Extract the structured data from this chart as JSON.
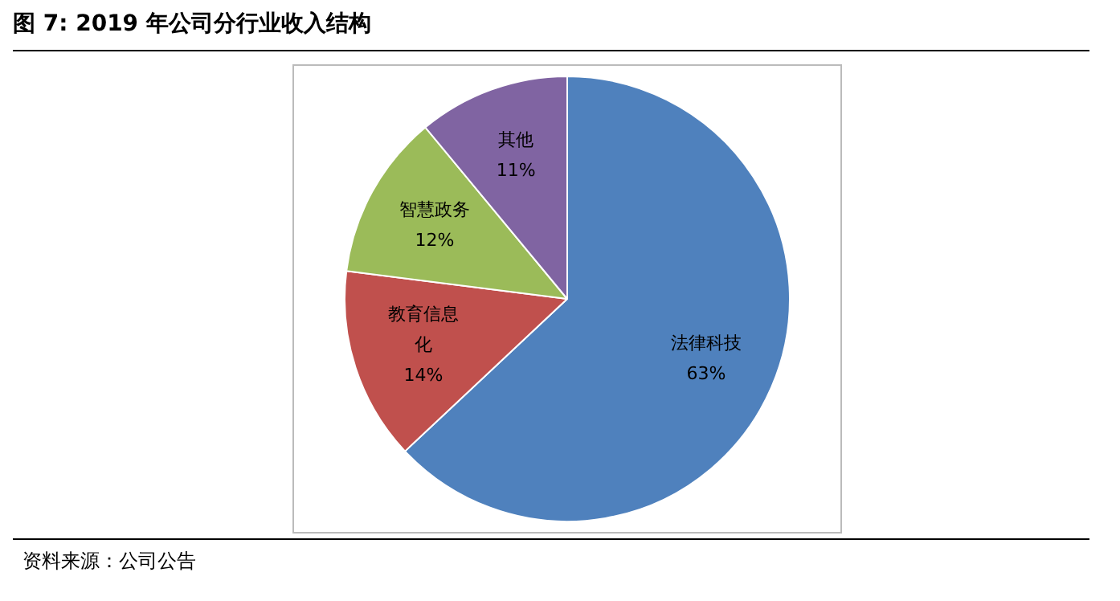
{
  "chart_data": {
    "type": "pie",
    "title": "图 7:  2019 年公司分行业收入结构",
    "categories": [
      "法律科技",
      "教育信息化",
      "智慧政务",
      "其他"
    ],
    "values": [
      63,
      14,
      12,
      11
    ],
    "value_labels": [
      "63%",
      "14%",
      "12%",
      "11%"
    ],
    "colors": [
      "#4f81bd",
      "#c0504d",
      "#9bbb59",
      "#8064a2"
    ],
    "legend": false,
    "annotations": [
      "资料来源：公司公告"
    ]
  }
}
